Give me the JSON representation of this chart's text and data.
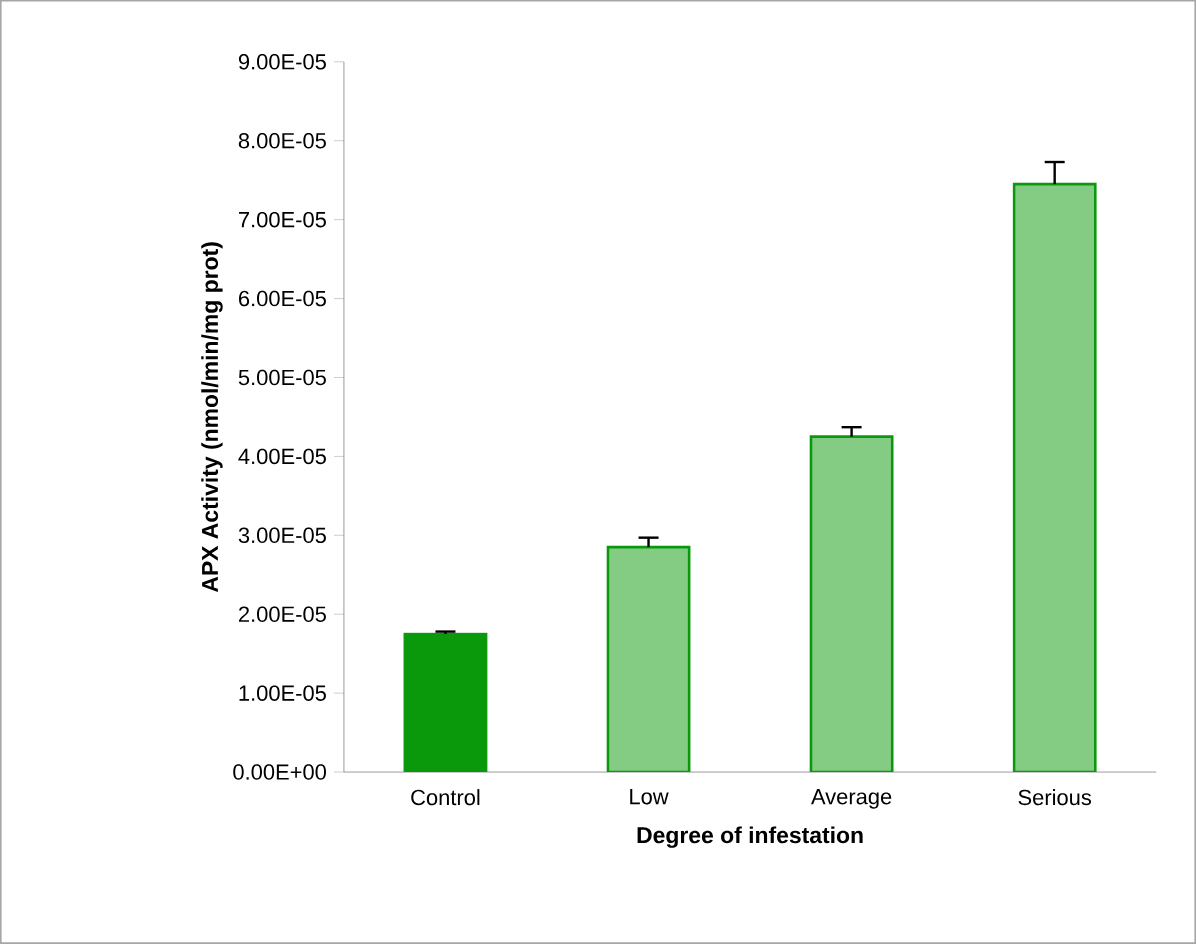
{
  "chart_data": {
    "type": "bar",
    "xlabel": "Degree of infestation",
    "ylabel": "APX Activity (nmol/min/mg prot)",
    "categories": [
      "Control",
      "Low",
      "Average",
      "Serious"
    ],
    "values": [
      1.75e-05,
      2.85e-05,
      4.25e-05,
      7.45e-05
    ],
    "errors": [
      3e-07,
      1.2e-06,
      1.2e-06,
      2.8e-06
    ],
    "colors": [
      "#0a990a",
      "#0a990a",
      "#0a990a",
      "#0a990a"
    ],
    "ylim": [
      0,
      9e-05
    ],
    "yticks": [
      {
        "value": 0,
        "label": "0.00E+00"
      },
      {
        "value": 1e-05,
        "label": "1.00E-05"
      },
      {
        "value": 2e-05,
        "label": "2.00E-05"
      },
      {
        "value": 3e-05,
        "label": "3.00E-05"
      },
      {
        "value": 4e-05,
        "label": "4.00E-05"
      },
      {
        "value": 5e-05,
        "label": "5.00E-05"
      },
      {
        "value": 6e-05,
        "label": "6.00E-05"
      },
      {
        "value": 7e-05,
        "label": "7.00E-05"
      },
      {
        "value": 8e-05,
        "label": "8.00E-05"
      },
      {
        "value": 9e-05,
        "label": "9.00E-05"
      }
    ],
    "grid": false
  }
}
